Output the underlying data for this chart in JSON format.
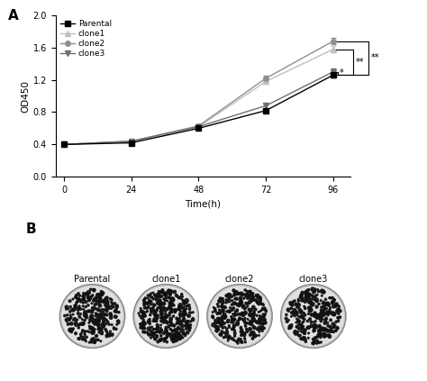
{
  "panel_A_label": "A",
  "panel_B_label": "B",
  "x": [
    0,
    24,
    48,
    72,
    96
  ],
  "parental": [
    0.4,
    0.42,
    0.6,
    0.82,
    1.26
  ],
  "clone1": [
    0.4,
    0.44,
    0.62,
    1.18,
    1.58
  ],
  "clone2": [
    0.4,
    0.44,
    0.63,
    1.22,
    1.68
  ],
  "clone3": [
    0.4,
    0.44,
    0.62,
    0.88,
    1.3
  ],
  "parental_err": [
    0.01,
    0.01,
    0.02,
    0.02,
    0.03
  ],
  "clone1_err": [
    0.01,
    0.01,
    0.02,
    0.03,
    0.04
  ],
  "clone2_err": [
    0.01,
    0.01,
    0.02,
    0.03,
    0.04
  ],
  "clone3_err": [
    0.01,
    0.01,
    0.02,
    0.03,
    0.04
  ],
  "parental_color": "#000000",
  "clone1_color": "#c0c0c0",
  "clone2_color": "#909090",
  "clone3_color": "#707070",
  "parental_marker": "s",
  "clone1_marker": "^",
  "clone2_marker": "o",
  "clone3_marker": "v",
  "xlabel": "Time(h)",
  "ylabel": "OD450",
  "ylim": [
    0.0,
    2.0
  ],
  "yticks": [
    0.0,
    0.4,
    0.8,
    1.2,
    1.6,
    2.0
  ],
  "xticks": [
    0,
    24,
    48,
    72,
    96
  ],
  "legend_labels": [
    "Parental",
    "clone1",
    "clone2",
    "clone3"
  ],
  "background_color": "#ffffff",
  "colony_labels": [
    "Parental",
    "clone1",
    "clone2",
    "clone3"
  ],
  "num_dots": [
    300,
    420,
    360,
    320
  ],
  "dish_bg_color": "#c8c8c8",
  "dish_inner_color": "#e0e0e0",
  "dish_border_color": "#888888",
  "dot_color": "#111111",
  "y_par_96": 1.26,
  "y_cl3_96": 1.3,
  "y_cl1_96": 1.58,
  "y_cl2_96": 1.68
}
